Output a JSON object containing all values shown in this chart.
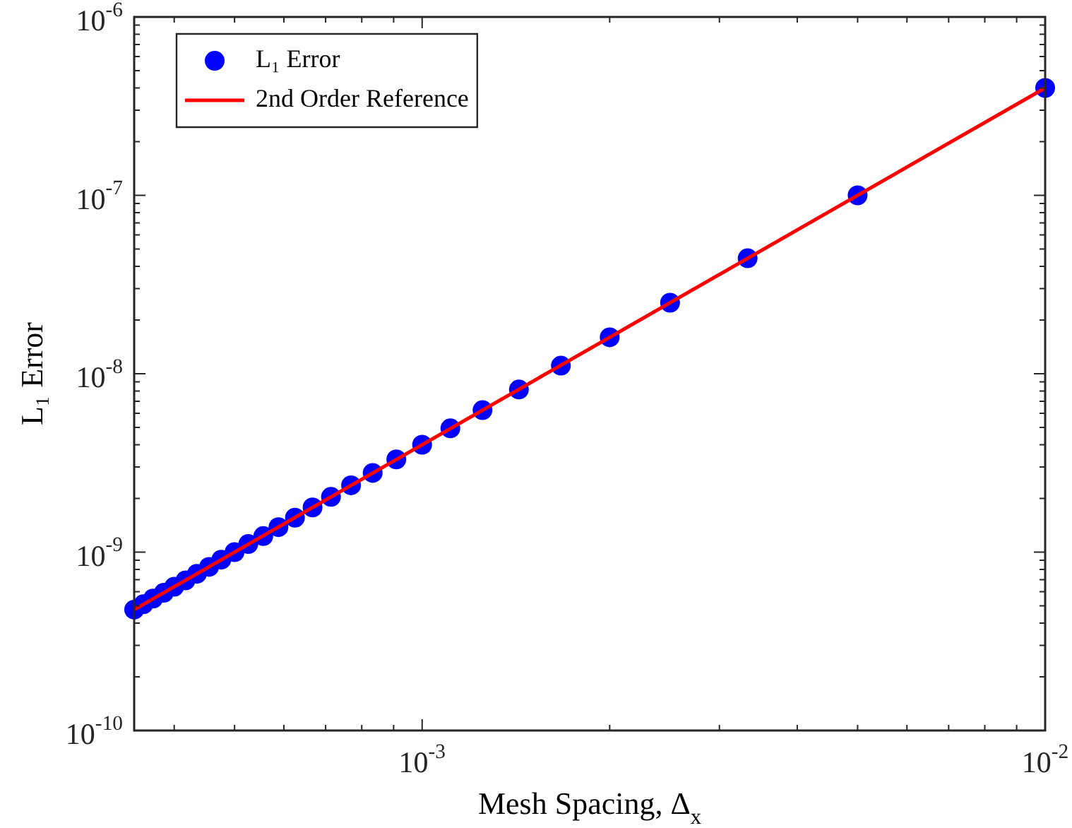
{
  "chart_data": {
    "type": "scatter",
    "xlabel": "Mesh Spacing, Δ$_{x}$",
    "ylabel": "L₁ Error",
    "log": "xy",
    "legend": "top left",
    "xlim": [
      0.000345,
      0.01
    ],
    "ylim": [
      1e-10,
      1e-06
    ],
    "xticks": [
      {
        "value": 0.0004,
        "label": null
      },
      {
        "value": 0.0005,
        "label": null
      },
      {
        "value": 0.0006,
        "label": null
      },
      {
        "value": 0.0007,
        "label": null
      },
      {
        "value": 0.0008,
        "label": null
      },
      {
        "value": 0.0009,
        "label": null
      },
      {
        "value": 0.001,
        "label": "10$^{-3}$"
      },
      {
        "value": 0.002,
        "label": null
      },
      {
        "value": 0.003,
        "label": null
      },
      {
        "value": 0.004,
        "label": null
      },
      {
        "value": 0.005,
        "label": null
      },
      {
        "value": 0.006,
        "label": null
      },
      {
        "value": 0.007,
        "label": null
      },
      {
        "value": 0.008,
        "label": null
      },
      {
        "value": 0.009,
        "label": null
      },
      {
        "value": 0.01,
        "label": "10$^{-2}$"
      }
    ],
    "yticks": [
      {
        "value": 1e-10,
        "label": "10$^{-10}$"
      },
      {
        "value": 2e-10,
        "label": null
      },
      {
        "value": 3e-10,
        "label": null
      },
      {
        "value": 4e-10,
        "label": null
      },
      {
        "value": 5e-10,
        "label": null
      },
      {
        "value": 6e-10,
        "label": null
      },
      {
        "value": 7e-10,
        "label": null
      },
      {
        "value": 8e-10,
        "label": null
      },
      {
        "value": 9e-10,
        "label": null
      },
      {
        "value": 1e-09,
        "label": "10$^{-9}$"
      },
      {
        "value": 2e-09,
        "label": null
      },
      {
        "value": 3e-09,
        "label": null
      },
      {
        "value": 4e-09,
        "label": null
      },
      {
        "value": 5e-09,
        "label": null
      },
      {
        "value": 6e-09,
        "label": null
      },
      {
        "value": 7e-09,
        "label": null
      },
      {
        "value": 8e-09,
        "label": null
      },
      {
        "value": 9e-09,
        "label": null
      },
      {
        "value": 1e-08,
        "label": "10$^{-8}$"
      },
      {
        "value": 2e-08,
        "label": null
      },
      {
        "value": 3e-08,
        "label": null
      },
      {
        "value": 4e-08,
        "label": null
      },
      {
        "value": 5e-08,
        "label": null
      },
      {
        "value": 6e-08,
        "label": null
      },
      {
        "value": 7e-08,
        "label": null
      },
      {
        "value": 8e-08,
        "label": null
      },
      {
        "value": 9e-08,
        "label": null
      },
      {
        "value": 1e-07,
        "label": "10$^{-7}$"
      },
      {
        "value": 2e-07,
        "label": null
      },
      {
        "value": 3e-07,
        "label": null
      },
      {
        "value": 4e-07,
        "label": null
      },
      {
        "value": 5e-07,
        "label": null
      },
      {
        "value": 6e-07,
        "label": null
      },
      {
        "value": 7e-07,
        "label": null
      },
      {
        "value": 8e-07,
        "label": null
      },
      {
        "value": 9e-07,
        "label": null
      },
      {
        "value": 1e-06,
        "label": "10$^{-6}$"
      }
    ],
    "series": [
      {
        "name": "L₁ Error",
        "type": "scatter",
        "marker": "circle",
        "color": "#0000ff",
        "x": [
          0.01,
          0.005,
          0.00333,
          0.0025,
          0.002,
          0.00167,
          0.00143,
          0.00125,
          0.00111,
          0.001,
          0.000909,
          0.000833,
          0.000769,
          0.000714,
          0.000667,
          0.000625,
          0.000588,
          0.000556,
          0.000526,
          0.0005,
          0.000476,
          0.000455,
          0.000435,
          0.000417,
          0.0004,
          0.000385,
          0.00037,
          0.000357,
          0.000345
        ],
        "values": [
          4e-07,
          1e-07,
          4.44e-08,
          2.5e-08,
          1.6e-08,
          1.11e-08,
          8.16e-09,
          6.25e-09,
          4.94e-09,
          4e-09,
          3.31e-09,
          2.78e-09,
          2.37e-09,
          2.04e-09,
          1.78e-09,
          1.56e-09,
          1.38e-09,
          1.23e-09,
          1.11e-09,
          1e-09,
          9.07e-10,
          8.26e-10,
          7.56e-10,
          6.94e-10,
          6.4e-10,
          5.92e-10,
          5.49e-10,
          5.1e-10,
          4.76e-10
        ]
      },
      {
        "name": "2nd Order Reference",
        "type": "line",
        "line_style": "solid",
        "color": "#ff0000",
        "x": [
          0.000345,
          0.01
        ],
        "values": [
          4.76e-10,
          4e-07
        ]
      }
    ]
  }
}
